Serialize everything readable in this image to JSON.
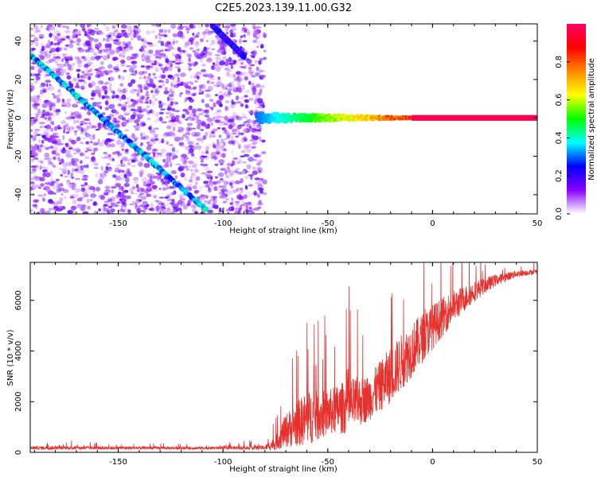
{
  "title": "C2E5.2023.139.11.00.G32",
  "chart_data": [
    {
      "type": "heatmap",
      "xlabel": "Height of straight line (km)",
      "ylabel": "Frequency (Hz)",
      "xlim": [
        -192,
        50
      ],
      "ylim": [
        -50,
        49
      ],
      "xticks": [
        -150,
        -100,
        -50,
        0,
        50
      ],
      "yticks": [
        -40,
        -20,
        0,
        20,
        40
      ],
      "colorbar": {
        "label": "Normalized spectral amplitude",
        "range": [
          0,
          1
        ],
        "ticks": [
          0.0,
          0.2,
          0.4,
          0.6,
          0.8
        ],
        "colormap": [
          "#ffffff",
          "#8800ff",
          "#0000ff",
          "#00ffff",
          "#00ff00",
          "#ffff00",
          "#ff8800",
          "#ff0000",
          "#ff0066"
        ]
      },
      "features": {
        "noise_region": {
          "x": [
            -192,
            -80
          ],
          "amplitude_approx": 0.1
        },
        "descending_track_1": {
          "x": [
            -192,
            -108
          ],
          "y": [
            33,
            -48
          ],
          "amplitude_approx": 0.3
        },
        "descending_track_2": {
          "x": [
            -105,
            -90
          ],
          "y": [
            48,
            32
          ],
          "amplitude_approx": 0.2
        },
        "carrier_line": {
          "x": [
            -84,
            50
          ],
          "y": 0,
          "amplitude_approx": [
            0.3,
            0.95
          ]
        }
      }
    },
    {
      "type": "line",
      "xlabel": "Height of straight line (km)",
      "ylabel": "SNR (10 * v/v)",
      "xlim": [
        -192,
        50
      ],
      "ylim": [
        0,
        7500
      ],
      "xticks": [
        -150,
        -100,
        -50,
        0,
        50
      ],
      "yticks": [
        0,
        2000,
        4000,
        6000
      ],
      "color": "#e8302c",
      "envelope": {
        "x": [
          -192,
          -100,
          -80,
          -75,
          -70,
          -60,
          -50,
          -40,
          -30,
          -20,
          -10,
          0,
          10,
          20,
          30,
          40,
          50
        ],
        "y_base": [
          150,
          150,
          150,
          250,
          600,
          900,
          1200,
          1400,
          1800,
          2600,
          3600,
          4600,
          5500,
          6200,
          6700,
          7000,
          7100
        ],
        "y_spread": [
          150,
          120,
          200,
          600,
          1500,
          2400,
          2000,
          2400,
          2000,
          2500,
          2400,
          2000,
          1400,
          900,
          500,
          300,
          200
        ]
      }
    }
  ]
}
